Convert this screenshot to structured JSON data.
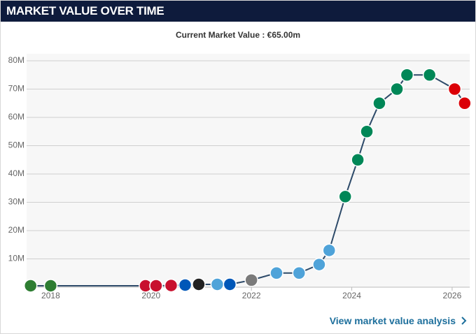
{
  "header": {
    "title": "MARKET VALUE OVER TIME"
  },
  "link": {
    "label": "View market value analysis"
  },
  "chart_data": {
    "type": "line",
    "subtitle": "Current Market Value : €65.00m",
    "x": [
      2017.6,
      2018.0,
      2019.89,
      2020.1,
      2020.4,
      2020.68,
      2020.95,
      2021.32,
      2021.57,
      2022.0,
      2022.5,
      2022.95,
      2023.35,
      2023.55,
      2023.87,
      2024.12,
      2024.3,
      2024.55,
      2024.9,
      2025.1,
      2025.55,
      2026.05,
      2026.25
    ],
    "series": [
      {
        "color": "#2d4a69",
        "values": [
          0.5,
          0.5,
          0.5,
          0.5,
          0.6,
          0.75,
          1,
          1,
          1,
          2.5,
          5,
          5,
          8,
          13,
          32,
          45,
          55,
          65,
          70,
          75,
          75,
          70,
          65
        ],
        "marker_colors": [
          "#2e7d32",
          "#2e7d32",
          "#c8102e",
          "#c8102e",
          "#c8102e",
          "#0057b8",
          "#222222",
          "#4fa3d9",
          "#0057b8",
          "#7a7a7a",
          "#4fa3d9",
          "#4fa3d9",
          "#4fa3d9",
          "#4fa3d9",
          "#008757",
          "#008757",
          "#008757",
          "#008757",
          "#008757",
          "#008757",
          "#008757",
          "#db0007",
          "#db0007"
        ]
      }
    ],
    "xlim": [
      2017.52,
      2026.35
    ],
    "ylim": [
      0,
      80
    ],
    "xticks": [
      2018,
      2020,
      2022,
      2024,
      2026
    ],
    "yticks": [
      {
        "value": 10,
        "label": "10M"
      },
      {
        "value": 20,
        "label": "20M"
      },
      {
        "value": 30,
        "label": "30M"
      },
      {
        "value": 40,
        "label": "40M"
      },
      {
        "value": 50,
        "label": "50M"
      },
      {
        "value": 60,
        "label": "60M"
      },
      {
        "value": 70,
        "label": "70M"
      },
      {
        "value": 80,
        "label": "80M"
      }
    ],
    "grid": true
  }
}
